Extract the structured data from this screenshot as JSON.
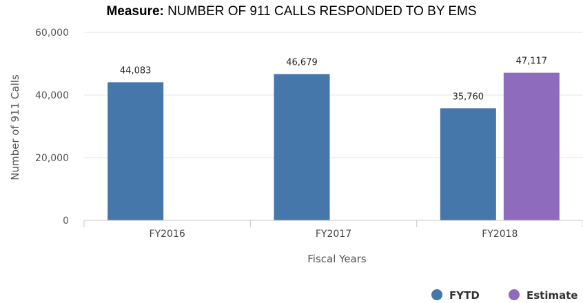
{
  "header": {
    "measure_label": "Measure:",
    "measure_text": "NUMBER OF 911 CALLS RESPONDED TO BY EMS"
  },
  "chart_data": {
    "type": "bar",
    "title": "Measure: NUMBER OF 911 CALLS RESPONDED TO BY EMS",
    "xlabel": "Fiscal Years",
    "ylabel": "Number of 911 Calls",
    "categories": [
      "FY2016",
      "FY2017",
      "FY2018"
    ],
    "series": [
      {
        "name": "FYTD",
        "color": "#4577aa",
        "values": [
          44083,
          46679,
          35760
        ],
        "labels": [
          "44,083",
          "46,679",
          "35,760"
        ]
      },
      {
        "name": "Estimate",
        "color": "#8e6bbd",
        "values": [
          null,
          null,
          47117
        ],
        "labels": [
          "",
          "",
          "47,117"
        ]
      }
    ],
    "yticks": [
      0,
      20000,
      40000,
      60000
    ],
    "ytick_labels": [
      "0",
      "20,000",
      "40,000",
      "60,000"
    ],
    "ylim": [
      0,
      60000
    ],
    "grid": true,
    "legend_position": "bottom-right"
  }
}
